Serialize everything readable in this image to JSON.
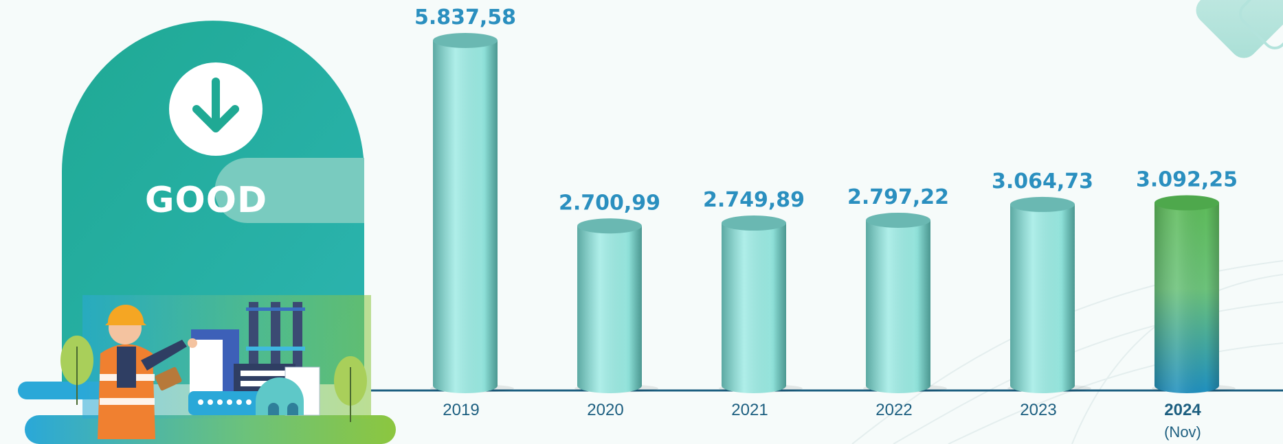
{
  "status": {
    "label": "GOOD",
    "icon": "arrow-down-circle-icon"
  },
  "colors": {
    "bar_fill": "#97e6de",
    "bar_highlight_top": "#5dbb5a",
    "bar_highlight_bottom": "#2a8fbf",
    "value_label": "#2a8fbf",
    "axis": "#1d5f80",
    "panel": "#22ad9b"
  },
  "chart_data": {
    "type": "bar",
    "categories": [
      "2019",
      "2020",
      "2021",
      "2022",
      "2023",
      "2024"
    ],
    "category_sublabels": [
      "",
      "",
      "",
      "",
      "",
      "(Nov)"
    ],
    "values": [
      5837.58,
      2700.99,
      2749.89,
      2797.22,
      3064.73,
      3092.25
    ],
    "value_labels": [
      "5.837,58",
      "2.700,99",
      "2.749,89",
      "2.797,22",
      "3.064,73",
      "3.092,25"
    ],
    "highlight_index": 5,
    "title": "",
    "xlabel": "",
    "ylabel": "",
    "grid": false,
    "legend": "none"
  }
}
